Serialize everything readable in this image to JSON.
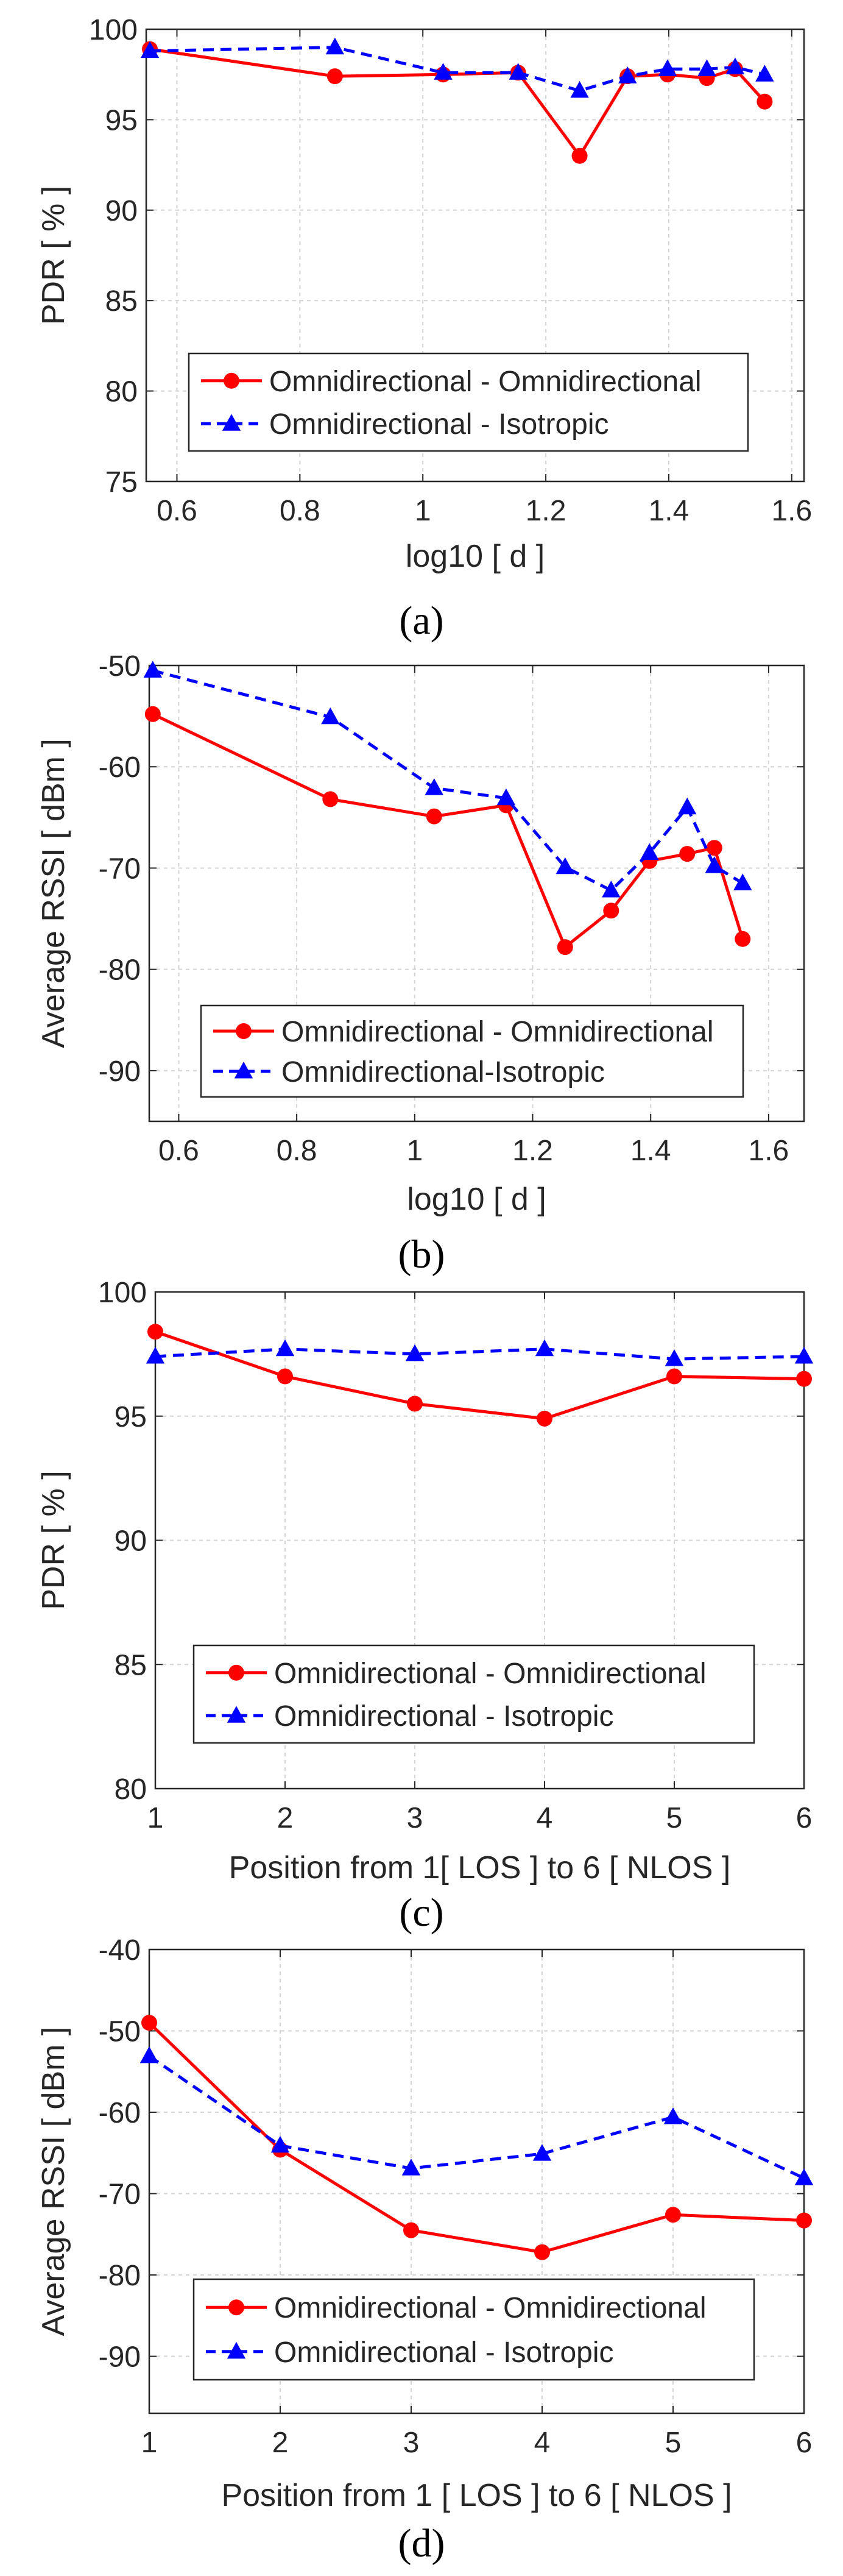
{
  "chart_data": [
    {
      "type": "line",
      "panel": "a",
      "caption_letter": "a",
      "title": "",
      "xlabel": "log10 [ d ]",
      "ylabel": "PDR [ % ]",
      "xlim": [
        0.55,
        1.62
      ],
      "ylim": [
        75,
        100
      ],
      "xticks": [
        0.6,
        0.8,
        1,
        1.2,
        1.4,
        1.6
      ],
      "xtick_labels": [
        "0.6",
        "0.8",
        "1",
        "1.2",
        "1.4",
        "1.6"
      ],
      "yticks": [
        75,
        80,
        85,
        90,
        95,
        100
      ],
      "ytick_labels": [
        "75",
        "80",
        "85",
        "90",
        "95",
        "100"
      ],
      "grid": true,
      "legend_position": "bottom-right",
      "series": [
        {
          "name": "Omnidirectional - Omnidirectional",
          "color": "#ff0000",
          "style": "solid",
          "marker": "circle",
          "x": [
            0.556,
            0.857,
            1.033,
            1.155,
            1.255,
            1.333,
            1.398,
            1.462,
            1.508,
            1.556
          ],
          "y": [
            98.9,
            97.4,
            97.5,
            97.6,
            93.0,
            97.4,
            97.5,
            97.3,
            97.8,
            96.0
          ]
        },
        {
          "name": "Omnidirectional - Isotropic",
          "color": "#0000ff",
          "style": "dashed",
          "marker": "triangle",
          "x": [
            0.556,
            0.857,
            1.033,
            1.155,
            1.255,
            1.333,
            1.398,
            1.462,
            1.508,
            1.556
          ],
          "y": [
            98.8,
            99.0,
            97.6,
            97.6,
            96.6,
            97.4,
            97.8,
            97.8,
            97.9,
            97.5
          ]
        }
      ]
    },
    {
      "type": "line",
      "panel": "b",
      "caption_letter": "b",
      "title": "",
      "xlabel": "log10 [ d ]",
      "ylabel": "Average RSSI [ dBm ]",
      "xlim": [
        0.55,
        1.66
      ],
      "ylim": [
        -95,
        -50
      ],
      "xticks": [
        0.6,
        0.8,
        1,
        1.2,
        1.4,
        1.6
      ],
      "xtick_labels": [
        "0.6",
        "0.8",
        "1",
        "1.2",
        "1.4",
        "1.6"
      ],
      "yticks": [
        -90,
        -80,
        -70,
        -60,
        -50
      ],
      "ytick_labels": [
        "-90",
        "-80",
        "-70",
        "-60",
        "-50"
      ],
      "grid": true,
      "legend_position": "bottom-right",
      "series": [
        {
          "name": "Omnidirectional - Omnidirectional",
          "color": "#ff0000",
          "style": "solid",
          "marker": "circle",
          "x": [
            0.556,
            0.857,
            1.033,
            1.155,
            1.255,
            1.333,
            1.398,
            1.462,
            1.508,
            1.556
          ],
          "y": [
            -54.8,
            -63.2,
            -64.9,
            -63.8,
            -77.8,
            -74.2,
            -69.3,
            -68.6,
            -68.0,
            -77.0
          ]
        },
        {
          "name": "Omnidirectional-Isotropic",
          "color": "#0000ff",
          "style": "dashed",
          "marker": "triangle",
          "x": [
            0.556,
            0.857,
            1.033,
            1.155,
            1.255,
            1.333,
            1.398,
            1.462,
            1.508,
            1.556
          ],
          "y": [
            -50.5,
            -55.1,
            -62.1,
            -63.1,
            -69.9,
            -72.2,
            -68.5,
            -64.0,
            -69.8,
            -71.5
          ]
        }
      ]
    },
    {
      "type": "line",
      "panel": "c",
      "caption_letter": "c",
      "title": "",
      "xlabel": "Position from 1[ LOS ] to 6 [ NLOS ]",
      "ylabel": "PDR [ % ]",
      "xlim": [
        1,
        6
      ],
      "ylim": [
        80,
        100
      ],
      "xticks": [
        1,
        2,
        3,
        4,
        5,
        6
      ],
      "xtick_labels": [
        "1",
        "2",
        "3",
        "4",
        "5",
        "6"
      ],
      "yticks": [
        80,
        85,
        90,
        95,
        100
      ],
      "ytick_labels": [
        "80",
        "85",
        "90",
        "95",
        "100"
      ],
      "grid": true,
      "legend_position": "bottom-right",
      "series": [
        {
          "name": "Omnidirectional - Omnidirectional",
          "color": "#ff0000",
          "style": "solid",
          "marker": "circle",
          "x": [
            1,
            2,
            3,
            4,
            5,
            6
          ],
          "y": [
            98.4,
            96.6,
            95.5,
            94.9,
            96.6,
            96.5
          ]
        },
        {
          "name": "Omnidirectional - Isotropic",
          "color": "#0000ff",
          "style": "dashed",
          "marker": "triangle",
          "x": [
            1,
            2,
            3,
            4,
            5,
            6
          ],
          "y": [
            97.4,
            97.7,
            97.5,
            97.7,
            97.3,
            97.4
          ]
        }
      ]
    },
    {
      "type": "line",
      "panel": "d",
      "caption_letter": "d",
      "title": "",
      "xlabel": "Position from 1 [ LOS ] to 6 [ NLOS ]",
      "ylabel": "Average RSSI [ dBm ]",
      "xlim": [
        1,
        6
      ],
      "ylim": [
        -97,
        -40
      ],
      "xticks": [
        1,
        2,
        3,
        4,
        5,
        6
      ],
      "xtick_labels": [
        "1",
        "2",
        "3",
        "4",
        "5",
        "6"
      ],
      "yticks": [
        -90,
        -80,
        -70,
        -60,
        -50,
        -40
      ],
      "ytick_labels": [
        "-90",
        "-80",
        "-70",
        "-60",
        "-50",
        "-40"
      ],
      "grid": true,
      "legend_position": "bottom-right",
      "series": [
        {
          "name": "Omnidirectional - Omnidirectional",
          "color": "#ff0000",
          "style": "solid",
          "marker": "circle",
          "x": [
            1,
            2,
            3,
            4,
            5,
            6
          ],
          "y": [
            -49.0,
            -64.6,
            -74.5,
            -77.2,
            -72.6,
            -73.3
          ]
        },
        {
          "name": "Omnidirectional - Isotropic",
          "color": "#0000ff",
          "style": "dashed",
          "marker": "triangle",
          "x": [
            1,
            2,
            3,
            4,
            5,
            6
          ],
          "y": [
            -53.1,
            -64.1,
            -66.9,
            -65.1,
            -60.6,
            -68.1
          ]
        }
      ]
    }
  ]
}
